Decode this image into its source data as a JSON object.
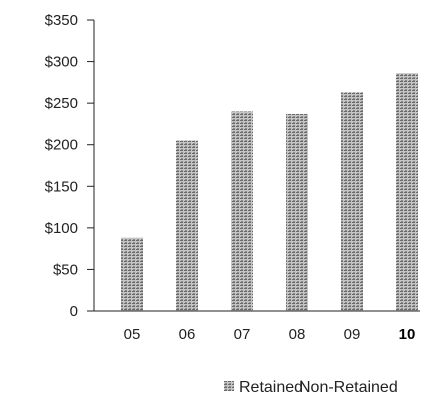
{
  "chart_data": {
    "type": "bar",
    "title": "",
    "xlabel": "",
    "ylabel": "",
    "categories": [
      "05",
      "06",
      "07",
      "08",
      "09",
      "10"
    ],
    "highlighted_category": "10",
    "y_ticks": [
      "0",
      "$50",
      "$100",
      "$150",
      "$200",
      "$250",
      "$300",
      "$350"
    ],
    "ylim": [
      0,
      350
    ],
    "grid": false,
    "legend_position": "bottom-right",
    "series": [
      {
        "name": "Retained",
        "values": [
          88,
          205,
          240,
          237,
          263,
          286
        ],
        "color": "#888888",
        "pattern": "stipple"
      },
      {
        "name": "Non-Retained",
        "values": [
          0,
          0,
          0,
          0,
          0,
          0
        ],
        "color": "#ffffff"
      }
    ]
  }
}
